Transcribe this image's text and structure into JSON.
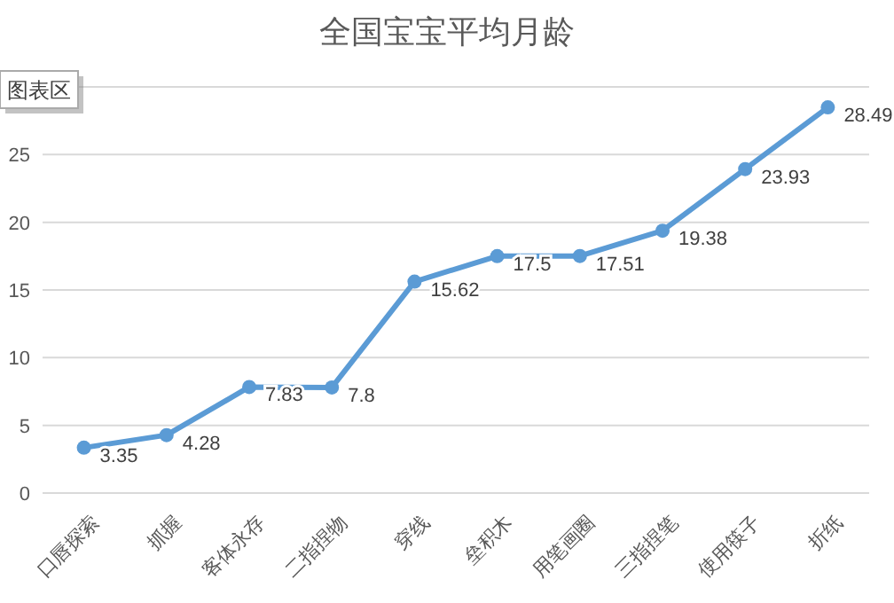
{
  "chart_data": {
    "type": "line",
    "title": "全国宝宝平均月龄",
    "categories": [
      "口唇探索",
      "抓握",
      "客体永存",
      "二指捏物",
      "穿线",
      "垒积木",
      "用笔画圈",
      "三指捏笔",
      "使用筷子",
      "折纸"
    ],
    "series": [
      {
        "color": "#5b9bd5",
        "values": [
          3.35,
          4.28,
          7.83,
          7.8,
          15.62,
          17.5,
          17.51,
          19.38,
          23.93,
          28.49
        ]
      }
    ],
    "ylim": [
      0,
      30
    ],
    "yticks": [
      0,
      5,
      10,
      15,
      20,
      25,
      {
        "value": 30,
        "label": null
      }
    ],
    "grid": "y",
    "marker": "circle",
    "line_style": "solid",
    "data_labels": true,
    "annotations": [
      "图表区"
    ]
  }
}
